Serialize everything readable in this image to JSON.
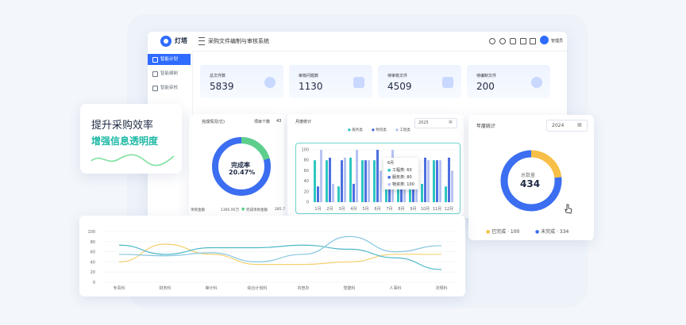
{
  "app": {
    "logo_text": "灯塔",
    "title": "采购文件编制与审核系统",
    "user": "管理员"
  },
  "sidebar": {
    "items": [
      {
        "label": "智能计划",
        "active": true
      },
      {
        "label": "智能编制",
        "active": false
      },
      {
        "label": "智能审核",
        "active": false
      }
    ]
  },
  "stats": [
    {
      "label": "总文件数",
      "value": "5839",
      "icon": "pie-icon"
    },
    {
      "label": "审核问题数",
      "value": "1130",
      "icon": "doc-icon"
    },
    {
      "label": "待审核文件",
      "value": "4509",
      "icon": "file-icon"
    },
    {
      "label": "待编制文件",
      "value": "200",
      "icon": "clock-icon"
    }
  ],
  "callout": {
    "line1": "提升采购效率",
    "line2": "增强信息透明度"
  },
  "completion": {
    "title": "完成情况(亿)",
    "project_label": "项目个数",
    "project_count": "43",
    "center_label": "完成率",
    "center_value": "20.47%",
    "footer_left": "项目金额",
    "footer_amount": "1395.95万",
    "footer_done_label": "完成项目金额",
    "footer_done_value": "285.7",
    "colors": {
      "done": "#5dcf8c",
      "rest": "#3b6ef0"
    },
    "rate": 0.2047
  },
  "monthly": {
    "title": "月度统计",
    "year": "2025",
    "legend": [
      "服务类",
      "物资类",
      "工程类"
    ],
    "tooltip": {
      "title": "6月",
      "rows": [
        {
          "label": "工程类",
          "value": "60"
        },
        {
          "label": "服务类",
          "value": "80"
        },
        {
          "label": "物资类",
          "value": "100"
        }
      ]
    }
  },
  "yearly": {
    "title": "年度统计",
    "year": "2024",
    "center_label": "总数量",
    "center_value": "434",
    "legend": [
      {
        "label": "已完成",
        "value": "100",
        "color": "#f7bf47"
      },
      {
        "label": "未完成",
        "value": "334",
        "color": "#3b6ef0"
      }
    ]
  },
  "chart_data": [
    {
      "type": "bar",
      "categories": [
        "1月",
        "2月",
        "3月",
        "4月",
        "5月",
        "6月",
        "7月",
        "8月",
        "9月",
        "10月",
        "11月",
        "12月"
      ],
      "series": [
        {
          "name": "服务类",
          "color": "#2ec7c0",
          "values": [
            80,
            80,
            30,
            85,
            80,
            80,
            70,
            85,
            80,
            35,
            80,
            30
          ]
        },
        {
          "name": "物资类",
          "color": "#4c6fe0",
          "values": [
            30,
            85,
            80,
            35,
            80,
            100,
            80,
            30,
            80,
            85,
            80,
            85
          ]
        },
        {
          "name": "工程类",
          "color": "#b7c3f2",
          "values": [
            100,
            35,
            85,
            100,
            80,
            60,
            100,
            85,
            60,
            80,
            80,
            60
          ]
        }
      ],
      "yticks": [
        0,
        20,
        40,
        60,
        80,
        100
      ],
      "ylim": [
        0,
        100
      ]
    },
    {
      "type": "line",
      "categories": [
        "专责科",
        "财务科",
        "审计科",
        "综合计划科",
        "内管办",
        "党建科",
        "人事科",
        "法规科"
      ],
      "yticks": [
        0,
        20,
        40,
        60,
        80,
        100
      ],
      "ylim": [
        0,
        100
      ],
      "series": [
        {
          "color": "#f4d06f",
          "values": [
            40,
            75,
            55,
            35,
            35,
            40,
            55,
            55
          ]
        },
        {
          "color": "#4db8c7",
          "values": [
            73,
            55,
            68,
            68,
            73,
            65,
            48,
            25
          ]
        },
        {
          "color": "#86c6e0",
          "values": [
            55,
            52,
            58,
            40,
            55,
            90,
            60,
            72
          ]
        }
      ]
    }
  ]
}
